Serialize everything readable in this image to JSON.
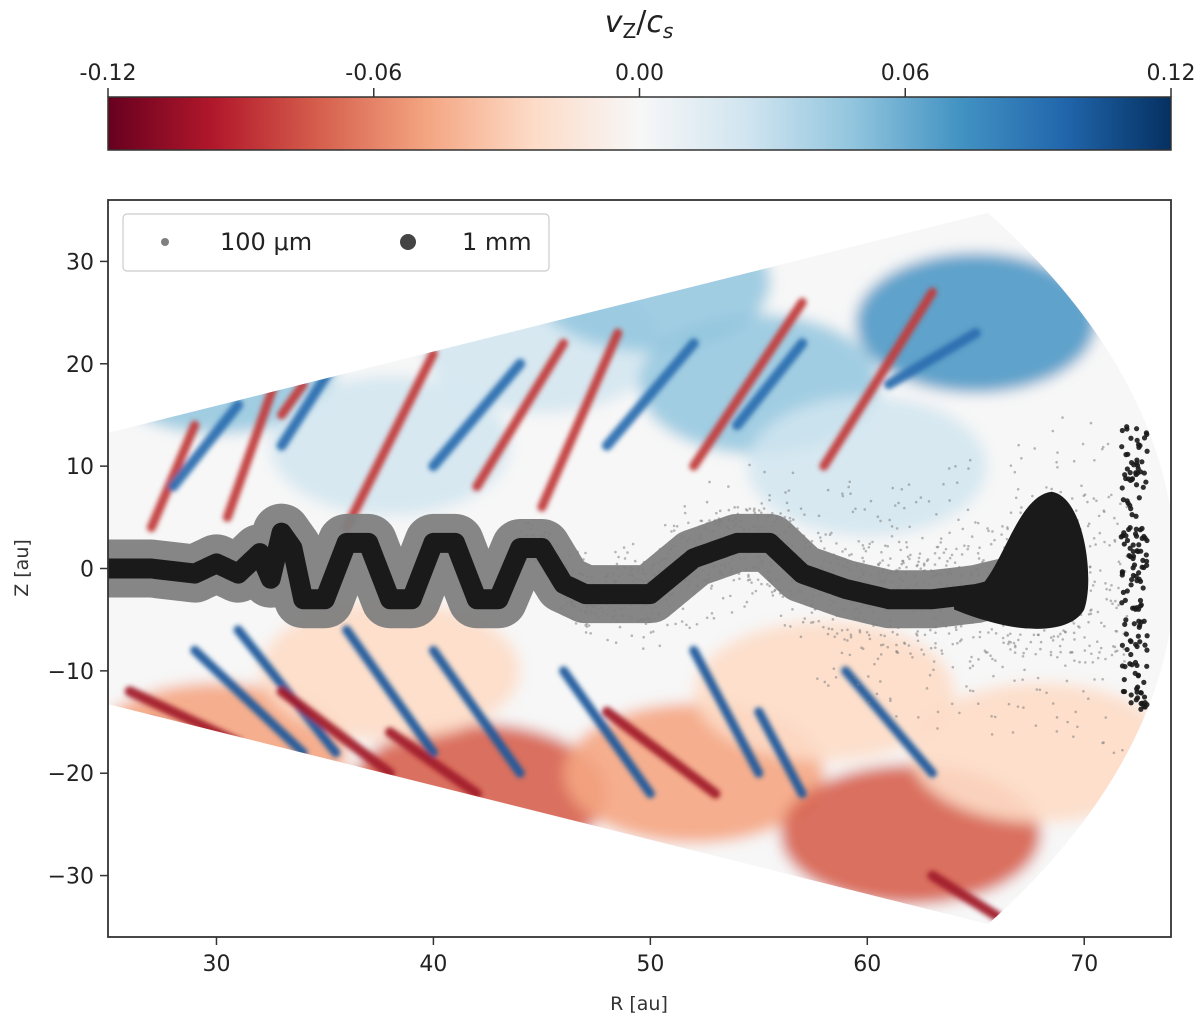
{
  "chart_data": {
    "type": "heatmap",
    "colorbar": {
      "title": "v_Z / c_s",
      "title_parts": {
        "v": "v",
        "sub1": "Z",
        "slash": "/",
        "c": "c",
        "sub2": "s"
      },
      "range": [
        -0.12,
        0.12
      ],
      "ticks": [
        "-0.12",
        "-0.06",
        "0.00",
        "0.06",
        "0.12"
      ],
      "tick_values": [
        -0.12,
        -0.06,
        0.0,
        0.06,
        0.12
      ],
      "colormap": "RdBu",
      "stops": [
        "#67001f",
        "#b2182b",
        "#d6604d",
        "#f4a582",
        "#fddbc7",
        "#f7f7f7",
        "#d1e5f0",
        "#92c5de",
        "#4393c3",
        "#2166ac",
        "#053061"
      ]
    },
    "xlabel": "R [au]",
    "ylabel": "Z [au]",
    "xlim": [
      25,
      74
    ],
    "ylim": [
      -36,
      36
    ],
    "xticks": [
      30,
      40,
      50,
      60,
      70
    ],
    "yticks": [
      -30,
      -20,
      -10,
      0,
      10,
      20,
      30
    ],
    "wedge": {
      "origin_r": 0,
      "theta_max_over_r": 0.53,
      "r_outer": 74.2
    },
    "legend": {
      "placement": "top-left",
      "entries": [
        {
          "label": "100 μm",
          "color": "#7f7f7f"
        },
        {
          "label": "1 mm",
          "color": "#1a1a1a"
        }
      ]
    },
    "dust_midplane_1mm": {
      "r": [
        25,
        27,
        29,
        30,
        31,
        32,
        32.5,
        33,
        33.5,
        34,
        35,
        36,
        37,
        38,
        39,
        40,
        41,
        42,
        43,
        44,
        45,
        46,
        47,
        48,
        50,
        52,
        54,
        55.5,
        57,
        59,
        61,
        63,
        65,
        67,
        68.5
      ],
      "z": [
        0,
        0,
        -0.5,
        0.5,
        -0.5,
        1.5,
        -1,
        3.5,
        2,
        -3,
        -3,
        2.5,
        2.5,
        -3,
        -3,
        2.5,
        2.5,
        -3,
        -3,
        2,
        2,
        -1.5,
        -2.5,
        -2.5,
        -2.5,
        1,
        2.5,
        2.5,
        -0.5,
        -2,
        -3,
        -3,
        -2.5,
        -1.5,
        -1
      ]
    }
  }
}
